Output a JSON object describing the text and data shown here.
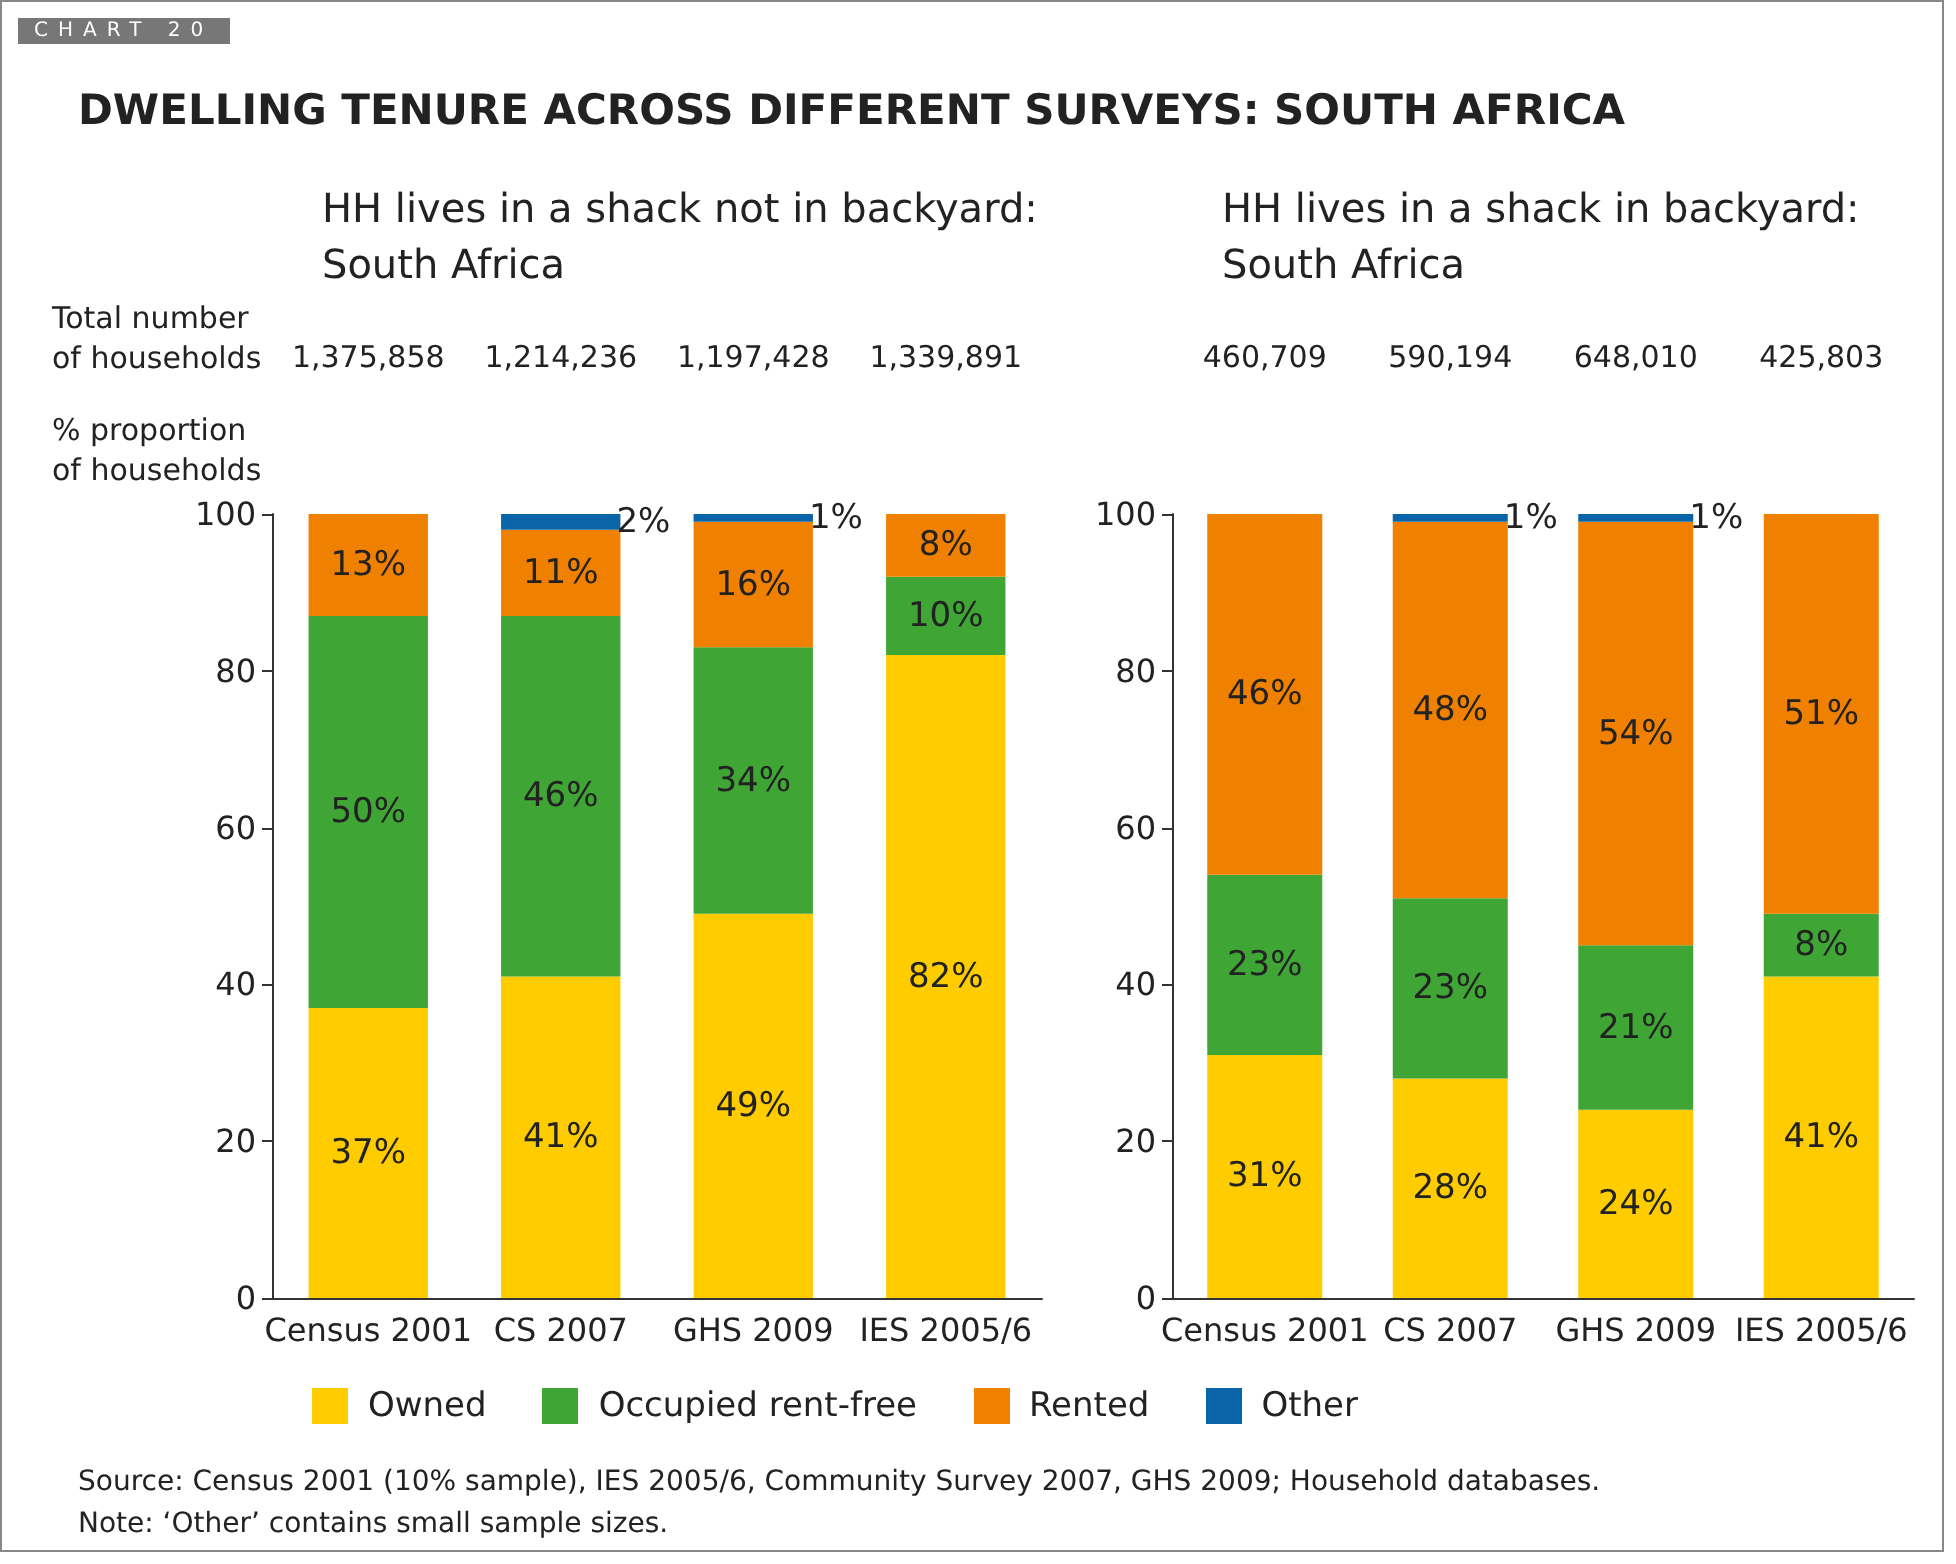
{
  "chart_data": [
    {
      "type": "bar",
      "stacked": true,
      "title": "DWELLING TENURE ACROSS DIFFERENT SURVEYS: SOUTH AFRICA",
      "subtitle": "HH lives in a shack not in backyard: South Africa",
      "ylabel": "% proportion of households",
      "categories": [
        "Census 2001",
        "CS 2007",
        "GHS 2009",
        "IES 2005/6"
      ],
      "series": [
        {
          "name": "Owned",
          "color": "#ffcc00",
          "values": [
            37,
            41,
            49,
            82
          ],
          "value_labels": [
            "37%",
            "41%",
            "49%",
            "82%"
          ]
        },
        {
          "name": "Occupied rent-free",
          "color": "#3fa535",
          "values": [
            50,
            46,
            34,
            10
          ],
          "value_labels": [
            "50%",
            "46%",
            "34%",
            "10%"
          ]
        },
        {
          "name": "Rented",
          "color": "#f08000",
          "values": [
            13,
            11,
            16,
            8
          ],
          "value_labels": [
            "13%",
            "11%",
            "16%",
            "8%"
          ]
        },
        {
          "name": "Other",
          "color": "#0a64a8",
          "values": [
            null,
            2,
            1,
            null
          ],
          "value_labels": [
            null,
            "2%",
            "1%",
            null
          ]
        }
      ],
      "ylim": [
        0,
        100
      ],
      "yticks": [
        0,
        20,
        40,
        60,
        80,
        100
      ],
      "grid": false,
      "legend": "bottom",
      "annotations": [
        "CHART 20",
        "Total number of households",
        "1,375,858",
        "1,214,236",
        "1,197,428",
        "1,339,891",
        "Source: Census 2001 (10% sample), IES 2005/6, Community Survey 2007, GHS 2009; Household databases.",
        "Note: ‘Other’ contains small sample sizes."
      ]
    },
    {
      "type": "bar",
      "stacked": true,
      "subtitle": "HH lives in a shack in backyard: South Africa",
      "categories": [
        "Census 2001",
        "CS 2007",
        "GHS 2009",
        "IES 2005/6"
      ],
      "series": [
        {
          "color": "#ffcc00",
          "values": [
            31,
            28,
            24,
            41
          ],
          "value_labels": [
            "31%",
            "28%",
            "24%",
            "41%"
          ]
        },
        {
          "color": "#3fa535",
          "values": [
            23,
            23,
            21,
            8
          ],
          "value_labels": [
            "23%",
            "23%",
            "21%",
            "8%"
          ]
        },
        {
          "color": "#f08000",
          "values": [
            46,
            48,
            54,
            51
          ],
          "value_labels": [
            "46%",
            "48%",
            "54%",
            "51%"
          ]
        },
        {
          "color": "#0a64a8",
          "values": [
            null,
            1,
            1,
            null
          ],
          "value_labels": [
            null,
            "1%",
            "1%",
            null
          ]
        }
      ],
      "ylim": [
        0,
        100
      ],
      "yticks": [
        0,
        20,
        40,
        60,
        80,
        100
      ],
      "grid": false,
      "annotations": [
        "460,709",
        "590,194",
        "648,010",
        "425,803"
      ]
    }
  ]
}
